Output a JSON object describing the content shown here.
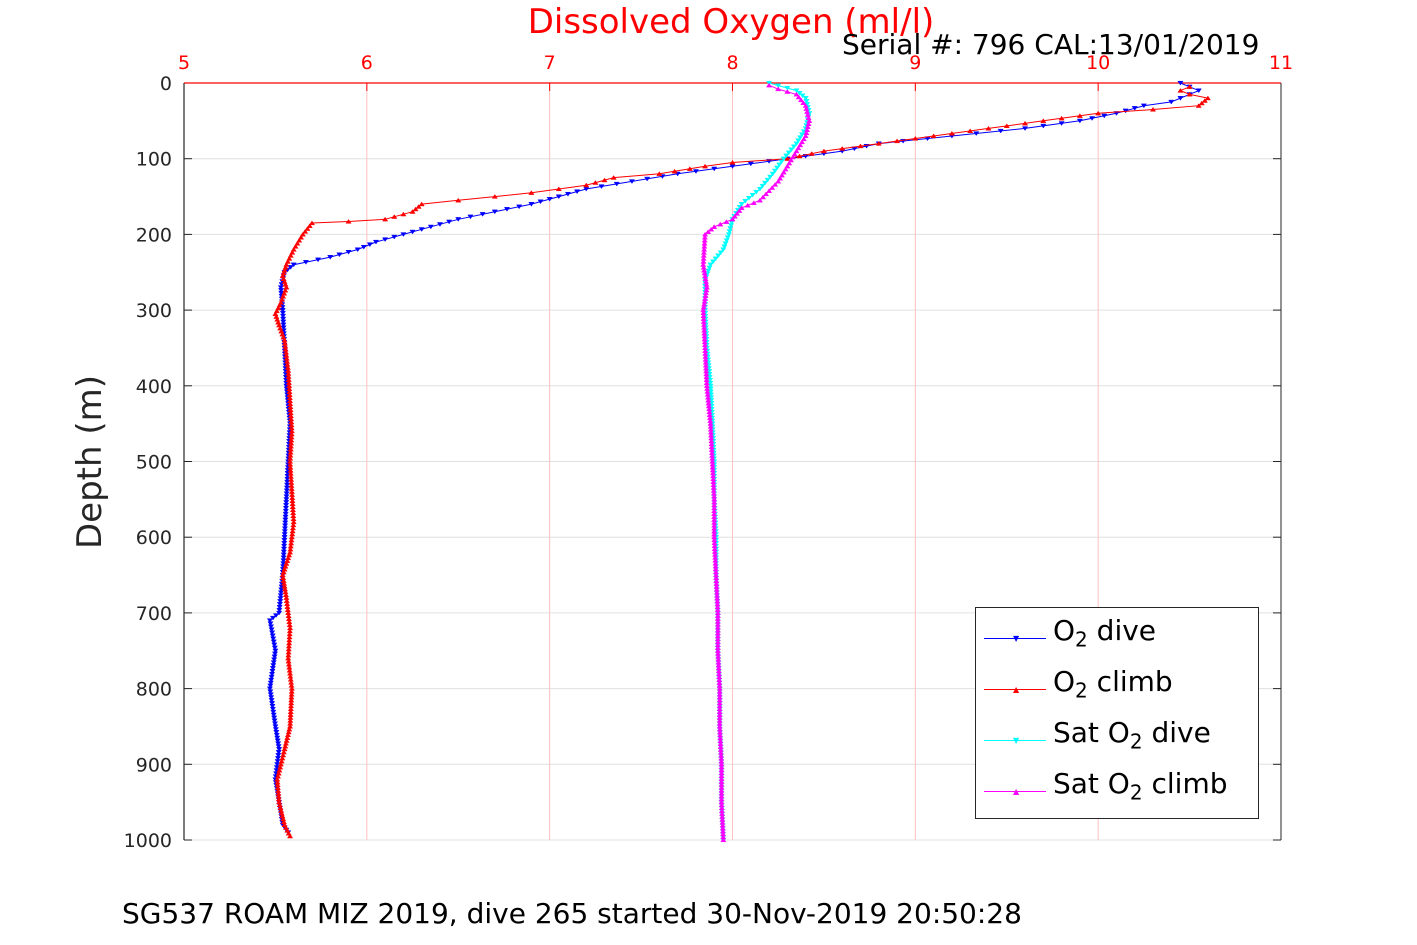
{
  "header": {
    "title": "Dissolved Oxygen (ml/l)",
    "serial": "Serial #: 796  CAL:13/01/2019"
  },
  "footer": "SG537 ROAM MIZ 2019, dive 265 started 30-Nov-2019 20:50:28",
  "legend": [
    {
      "pre": "O",
      "sub": "2",
      "post": " dive",
      "color": "#0000ff",
      "marker": "down-triangle"
    },
    {
      "pre": "O",
      "sub": "2",
      "post": " climb",
      "color": "#ff0000",
      "marker": "up-triangle"
    },
    {
      "pre": "Sat O",
      "sub": "2",
      "post": " dive",
      "color": "#00ffff",
      "marker": "down-triangle"
    },
    {
      "pre": "Sat O",
      "sub": "2",
      "post": " climb",
      "color": "#ff00ff",
      "marker": "up-triangle"
    }
  ],
  "chart_data": {
    "type": "scatter",
    "title": "Dissolved Oxygen (ml/l)",
    "xlabel": "",
    "ylabel": "Depth (m)",
    "xlim": [
      5,
      11
    ],
    "ylim": [
      0,
      1000
    ],
    "y_reversed": true,
    "x_axis_position": "top",
    "xticks": [
      5,
      6,
      7,
      8,
      9,
      10,
      11
    ],
    "yticks": [
      0,
      100,
      200,
      300,
      400,
      500,
      600,
      700,
      800,
      900,
      1000
    ],
    "grid": true,
    "legend_position": "bottom-right",
    "colors": {
      "axis_x": "#ff0000",
      "grid": "#e0e0e0",
      "grid_x": "#ffc0c0"
    },
    "series": [
      {
        "name": "O2 dive",
        "color": "#0000ff",
        "marker": "down-triangle",
        "points": [
          [
            10.45,
            0
          ],
          [
            10.5,
            5
          ],
          [
            10.55,
            10
          ],
          [
            10.5,
            15
          ],
          [
            10.45,
            20
          ],
          [
            10.4,
            25
          ],
          [
            10.25,
            30
          ],
          [
            10.1,
            40
          ],
          [
            9.9,
            50
          ],
          [
            9.6,
            60
          ],
          [
            9.2,
            70
          ],
          [
            8.8,
            80
          ],
          [
            8.6,
            90
          ],
          [
            8.3,
            100
          ],
          [
            8.0,
            110
          ],
          [
            7.7,
            120
          ],
          [
            7.45,
            130
          ],
          [
            7.2,
            140
          ],
          [
            7.05,
            150
          ],
          [
            6.9,
            160
          ],
          [
            6.7,
            170
          ],
          [
            6.5,
            180
          ],
          [
            6.35,
            190
          ],
          [
            6.2,
            200
          ],
          [
            6.05,
            210
          ],
          [
            5.95,
            220
          ],
          [
            5.8,
            230
          ],
          [
            5.6,
            240
          ],
          [
            5.55,
            250
          ],
          [
            5.53,
            270
          ],
          [
            5.54,
            300
          ],
          [
            5.55,
            350
          ],
          [
            5.56,
            400
          ],
          [
            5.58,
            450
          ],
          [
            5.57,
            500
          ],
          [
            5.56,
            550
          ],
          [
            5.55,
            600
          ],
          [
            5.54,
            650
          ],
          [
            5.52,
            700
          ],
          [
            5.47,
            710
          ],
          [
            5.5,
            750
          ],
          [
            5.47,
            800
          ],
          [
            5.5,
            850
          ],
          [
            5.52,
            880
          ],
          [
            5.5,
            920
          ],
          [
            5.52,
            950
          ],
          [
            5.54,
            980
          ],
          [
            5.57,
            990
          ]
        ]
      },
      {
        "name": "O2 climb",
        "color": "#ff0000",
        "marker": "up-triangle",
        "points": [
          [
            5.58,
            995
          ],
          [
            5.55,
            980
          ],
          [
            5.52,
            950
          ],
          [
            5.51,
            920
          ],
          [
            5.55,
            880
          ],
          [
            5.58,
            850
          ],
          [
            5.59,
            800
          ],
          [
            5.57,
            760
          ],
          [
            5.58,
            720
          ],
          [
            5.56,
            680
          ],
          [
            5.54,
            650
          ],
          [
            5.58,
            620
          ],
          [
            5.6,
            580
          ],
          [
            5.59,
            540
          ],
          [
            5.58,
            500
          ],
          [
            5.59,
            460
          ],
          [
            5.58,
            420
          ],
          [
            5.57,
            380
          ],
          [
            5.55,
            340
          ],
          [
            5.52,
            320
          ],
          [
            5.5,
            305
          ],
          [
            5.53,
            290
          ],
          [
            5.56,
            270
          ],
          [
            5.54,
            255
          ],
          [
            5.56,
            240
          ],
          [
            5.6,
            220
          ],
          [
            5.65,
            200
          ],
          [
            5.7,
            185
          ],
          [
            5.9,
            183
          ],
          [
            6.1,
            180
          ],
          [
            6.25,
            170
          ],
          [
            6.3,
            160
          ],
          [
            6.5,
            155
          ],
          [
            6.7,
            150
          ],
          [
            6.9,
            145
          ],
          [
            7.05,
            140
          ],
          [
            7.2,
            135
          ],
          [
            7.35,
            125
          ],
          [
            7.6,
            120
          ],
          [
            7.85,
            110
          ],
          [
            8.0,
            105
          ],
          [
            8.3,
            100
          ],
          [
            8.5,
            90
          ],
          [
            8.8,
            80
          ],
          [
            9.1,
            70
          ],
          [
            9.4,
            60
          ],
          [
            9.7,
            50
          ],
          [
            10.0,
            40
          ],
          [
            10.3,
            35
          ],
          [
            10.55,
            30
          ],
          [
            10.6,
            20
          ],
          [
            10.5,
            15
          ],
          [
            10.45,
            10
          ],
          [
            10.5,
            5
          ]
        ]
      },
      {
        "name": "Sat O2 dive",
        "color": "#00ffff",
        "marker": "down-triangle",
        "points": [
          [
            8.2,
            0
          ],
          [
            8.35,
            10
          ],
          [
            8.4,
            20
          ],
          [
            8.42,
            40
          ],
          [
            8.4,
            60
          ],
          [
            8.35,
            80
          ],
          [
            8.28,
            100
          ],
          [
            8.22,
            120
          ],
          [
            8.15,
            140
          ],
          [
            8.05,
            160
          ],
          [
            8.0,
            180
          ],
          [
            7.98,
            200
          ],
          [
            7.95,
            220
          ],
          [
            7.88,
            240
          ],
          [
            7.85,
            260
          ],
          [
            7.85,
            300
          ],
          [
            7.86,
            350
          ],
          [
            7.88,
            400
          ],
          [
            7.89,
            450
          ],
          [
            7.9,
            500
          ],
          [
            7.9,
            550
          ],
          [
            7.91,
            600
          ],
          [
            7.91,
            650
          ],
          [
            7.92,
            700
          ],
          [
            7.92,
            750
          ],
          [
            7.93,
            800
          ],
          [
            7.93,
            850
          ],
          [
            7.94,
            900
          ],
          [
            7.94,
            950
          ],
          [
            7.95,
            1000
          ]
        ]
      },
      {
        "name": "Sat O2 climb",
        "color": "#ff00ff",
        "marker": "up-triangle",
        "points": [
          [
            7.95,
            1000
          ],
          [
            7.94,
            950
          ],
          [
            7.94,
            900
          ],
          [
            7.93,
            850
          ],
          [
            7.93,
            800
          ],
          [
            7.92,
            750
          ],
          [
            7.92,
            700
          ],
          [
            7.91,
            650
          ],
          [
            7.9,
            600
          ],
          [
            7.9,
            550
          ],
          [
            7.89,
            500
          ],
          [
            7.88,
            450
          ],
          [
            7.86,
            400
          ],
          [
            7.85,
            350
          ],
          [
            7.84,
            300
          ],
          [
            7.86,
            270
          ],
          [
            7.84,
            240
          ],
          [
            7.85,
            200
          ],
          [
            7.9,
            190
          ],
          [
            8.0,
            180
          ],
          [
            8.05,
            165
          ],
          [
            8.15,
            155
          ],
          [
            8.25,
            130
          ],
          [
            8.3,
            110
          ],
          [
            8.35,
            90
          ],
          [
            8.4,
            70
          ],
          [
            8.42,
            50
          ],
          [
            8.4,
            30
          ],
          [
            8.35,
            15
          ],
          [
            8.25,
            8
          ],
          [
            8.2,
            3
          ]
        ]
      }
    ]
  }
}
